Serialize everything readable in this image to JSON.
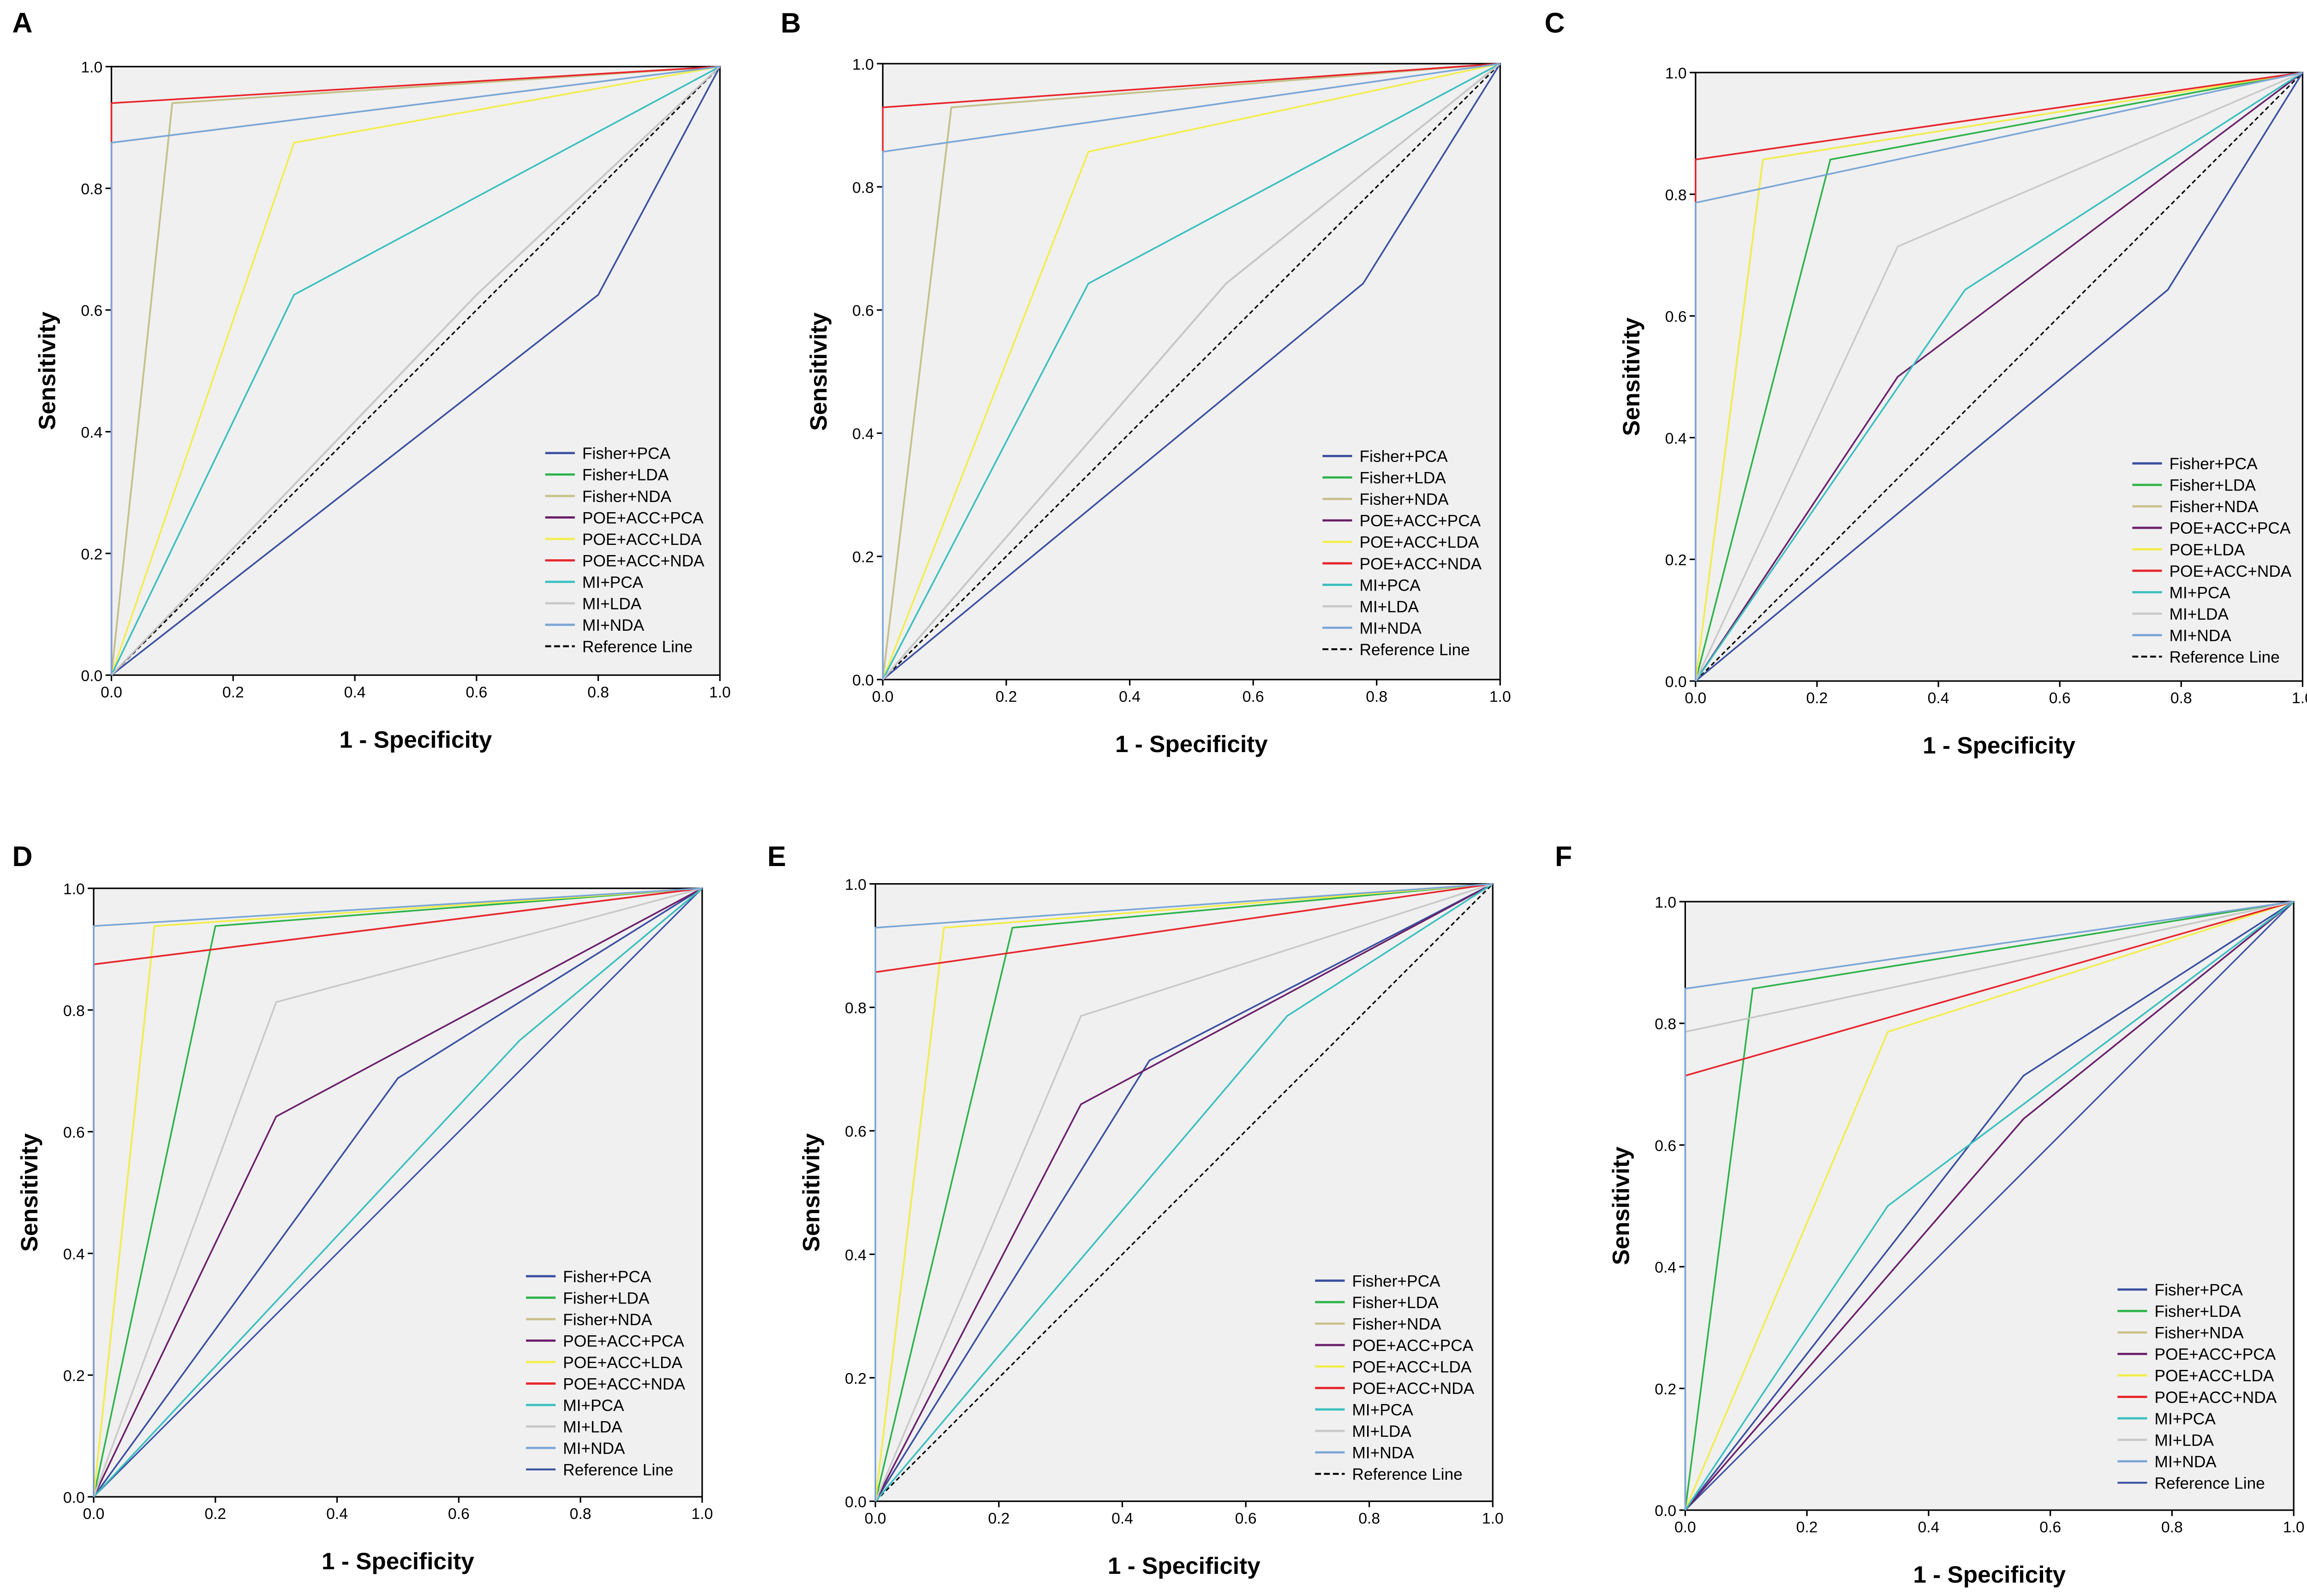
{
  "chart_data": [
    {
      "type": "line",
      "panel": "A",
      "xlabel": "1 - Specificity",
      "ylabel": "Sensitivity",
      "xlim": [
        0,
        1
      ],
      "ylim": [
        0,
        1
      ],
      "ticks": [
        "0.0",
        "0.2",
        "0.4",
        "0.6",
        "0.8",
        "1.0"
      ],
      "legend_position": "bottom-right",
      "reference": {
        "name": "Reference Line",
        "color": "#000000",
        "style": "dashed"
      },
      "series": [
        {
          "name": "Fisher+PCA",
          "color": "#3a4fa0",
          "point": [
            0.8,
            0.625
          ]
        },
        {
          "name": "Fisher+LDA",
          "color": "#2db34a",
          "point": [
            0.1,
            0.94
          ]
        },
        {
          "name": "Fisher+NDA",
          "color": "#c9c08a",
          "point": [
            0.1,
            0.94
          ]
        },
        {
          "name": "POE+ACC+PCA",
          "color": "#6b1f6b",
          "point": [
            0.6,
            0.625
          ]
        },
        {
          "name": "POE+ACC+LDA",
          "color": "#f2ee4a",
          "point": [
            0.3,
            0.875
          ]
        },
        {
          "name": "POE+ACC+NDA",
          "color": "#e8242b",
          "point": [
            0.0,
            0.94
          ]
        },
        {
          "name": "MI+PCA",
          "color": "#3bbfbf",
          "point": [
            0.3,
            0.625
          ]
        },
        {
          "name": "MI+LDA",
          "color": "#c8c8c8",
          "point": [
            0.6,
            0.625
          ]
        },
        {
          "name": "MI+NDA",
          "color": "#7aa6d6",
          "point": [
            0.0,
            0.875
          ]
        }
      ]
    },
    {
      "type": "line",
      "panel": "B",
      "xlabel": "1 - Specificity",
      "ylabel": "Sensitivity",
      "xlim": [
        0,
        1
      ],
      "ylim": [
        0,
        1
      ],
      "ticks": [
        "0.0",
        "0.2",
        "0.4",
        "0.6",
        "0.8",
        "1.0"
      ],
      "legend_position": "bottom-right",
      "reference": {
        "name": "Reference Line",
        "color": "#000000",
        "style": "dashed"
      },
      "series": [
        {
          "name": "Fisher+PCA",
          "color": "#3a4fa0",
          "point": [
            0.778,
            0.643
          ]
        },
        {
          "name": "Fisher+LDA",
          "color": "#2db34a",
          "point": [
            0.111,
            0.929
          ]
        },
        {
          "name": "Fisher+NDA",
          "color": "#c9c08a",
          "point": [
            0.111,
            0.929
          ]
        },
        {
          "name": "POE+ACC+PCA",
          "color": "#6b1f6b",
          "point": [
            0.556,
            0.643
          ]
        },
        {
          "name": "POE+ACC+LDA",
          "color": "#f2ee4a",
          "point": [
            0.333,
            0.857
          ]
        },
        {
          "name": "POE+ACC+NDA",
          "color": "#e8242b",
          "point": [
            0.0,
            0.929
          ]
        },
        {
          "name": "MI+PCA",
          "color": "#3bbfbf",
          "point": [
            0.333,
            0.643
          ]
        },
        {
          "name": "MI+LDA",
          "color": "#c8c8c8",
          "point": [
            0.556,
            0.643
          ]
        },
        {
          "name": "MI+NDA",
          "color": "#7aa6d6",
          "point": [
            0.0,
            0.857
          ]
        }
      ]
    },
    {
      "type": "line",
      "panel": "C",
      "xlabel": "1 - Specificity",
      "ylabel": "Sensitivity",
      "xlim": [
        0,
        1
      ],
      "ylim": [
        0,
        1
      ],
      "ticks": [
        "0.0",
        "0.2",
        "0.4",
        "0.6",
        "0.8",
        "1.0"
      ],
      "legend_position": "bottom-right",
      "reference": {
        "name": "Reference Line",
        "color": "#000000",
        "style": "dashed"
      },
      "series": [
        {
          "name": "Fisher+PCA",
          "color": "#3a4fa0",
          "point": [
            0.778,
            0.643
          ]
        },
        {
          "name": "Fisher+LDA",
          "color": "#2db34a",
          "point": [
            0.222,
            0.857
          ]
        },
        {
          "name": "Fisher+NDA",
          "color": "#c9c08a",
          "point": [
            0.111,
            0.857
          ]
        },
        {
          "name": "POE+ACC+PCA",
          "color": "#6b1f6b",
          "point": [
            0.333,
            0.5
          ]
        },
        {
          "name": "POE+LDA",
          "color": "#f2ee4a",
          "point": [
            0.111,
            0.857
          ]
        },
        {
          "name": "POE+ACC+NDA",
          "color": "#e8242b",
          "point": [
            0.0,
            0.857
          ]
        },
        {
          "name": "MI+PCA",
          "color": "#3bbfbf",
          "point": [
            0.444,
            0.643
          ]
        },
        {
          "name": "MI+LDA",
          "color": "#c8c8c8",
          "point": [
            0.333,
            0.714
          ]
        },
        {
          "name": "MI+NDA",
          "color": "#7aa6d6",
          "point": [
            0.0,
            0.786
          ]
        }
      ]
    },
    {
      "type": "line",
      "panel": "D",
      "xlabel": "1 - Specificity",
      "ylabel": "Sensitivity",
      "xlim": [
        0,
        1
      ],
      "ylim": [
        0,
        1
      ],
      "ticks": [
        "0.0",
        "0.2",
        "0.4",
        "0.6",
        "0.8",
        "1.0"
      ],
      "legend_position": "bottom-right",
      "reference": {
        "name": "Reference Line",
        "color": "#3a4fa0",
        "style": "solid"
      },
      "series": [
        {
          "name": "Fisher+PCA",
          "color": "#3a4fa0",
          "point": [
            0.5,
            0.688
          ]
        },
        {
          "name": "Fisher+LDA",
          "color": "#2db34a",
          "point": [
            0.2,
            0.938
          ]
        },
        {
          "name": "Fisher+NDA",
          "color": "#c9c08a",
          "point": [
            0.1,
            0.938
          ]
        },
        {
          "name": "POE+ACC+PCA",
          "color": "#6b1f6b",
          "point": [
            0.3,
            0.625
          ]
        },
        {
          "name": "POE+ACC+LDA",
          "color": "#f2ee4a",
          "point": [
            0.1,
            0.938
          ]
        },
        {
          "name": "POE+ACC+NDA",
          "color": "#e8242b",
          "point": [
            0.0,
            0.875
          ]
        },
        {
          "name": "MI+PCA",
          "color": "#3bbfbf",
          "point": [
            0.7,
            0.75
          ]
        },
        {
          "name": "MI+LDA",
          "color": "#c8c8c8",
          "point": [
            0.3,
            0.813
          ]
        },
        {
          "name": "MI+NDA",
          "color": "#7aa6d6",
          "point": [
            0.0,
            0.938
          ]
        }
      ]
    },
    {
      "type": "line",
      "panel": "E",
      "xlabel": "1 - Specificity",
      "ylabel": "Sensitivity",
      "xlim": [
        0,
        1
      ],
      "ylim": [
        0,
        1
      ],
      "ticks": [
        "0.0",
        "0.2",
        "0.4",
        "0.6",
        "0.8",
        "1.0"
      ],
      "legend_position": "bottom-right",
      "reference": {
        "name": "Reference Line",
        "color": "#000000",
        "style": "dashed"
      },
      "series": [
        {
          "name": "Fisher+PCA",
          "color": "#3a4fa0",
          "point": [
            0.444,
            0.714
          ]
        },
        {
          "name": "Fisher+LDA",
          "color": "#2db34a",
          "point": [
            0.222,
            0.929
          ]
        },
        {
          "name": "Fisher+NDA",
          "color": "#c9c08a",
          "point": [
            0.111,
            0.929
          ]
        },
        {
          "name": "POE+ACC+PCA",
          "color": "#6b1f6b",
          "point": [
            0.333,
            0.643
          ]
        },
        {
          "name": "POE+ACC+LDA",
          "color": "#f2ee4a",
          "point": [
            0.111,
            0.929
          ]
        },
        {
          "name": "POE+ACC+NDA",
          "color": "#e8242b",
          "point": [
            0.0,
            0.857
          ]
        },
        {
          "name": "MI+PCA",
          "color": "#3bbfbf",
          "point": [
            0.667,
            0.786
          ]
        },
        {
          "name": "MI+LDA",
          "color": "#c8c8c8",
          "point": [
            0.333,
            0.786
          ]
        },
        {
          "name": "MI+NDA",
          "color": "#7aa6d6",
          "point": [
            0.0,
            0.929
          ]
        }
      ]
    },
    {
      "type": "line",
      "panel": "F",
      "xlabel": "1 - Specificity",
      "ylabel": "Sensitivity",
      "xlim": [
        0,
        1
      ],
      "ylim": [
        0,
        1
      ],
      "ticks": [
        "0.0",
        "0.2",
        "0.4",
        "0.6",
        "0.8",
        "1.0"
      ],
      "legend_position": "bottom-right",
      "reference": {
        "name": "Reference Line",
        "color": "#3a4fa0",
        "style": "solid"
      },
      "series": [
        {
          "name": "Fisher+PCA",
          "color": "#3a4fa0",
          "point": [
            0.556,
            0.714
          ]
        },
        {
          "name": "Fisher+LDA",
          "color": "#2db34a",
          "point": [
            0.111,
            0.857
          ]
        },
        {
          "name": "Fisher+NDA",
          "color": "#c9c08a",
          "point": [
            0.0,
            0.786
          ]
        },
        {
          "name": "POE+ACC+PCA",
          "color": "#6b1f6b",
          "point": [
            0.556,
            0.643
          ]
        },
        {
          "name": "POE+ACC+LDA",
          "color": "#f2ee4a",
          "point": [
            0.333,
            0.786
          ]
        },
        {
          "name": "POE+ACC+NDA",
          "color": "#e8242b",
          "point": [
            0.0,
            0.714
          ]
        },
        {
          "name": " MI+PCA",
          "color": "#3bbfbf",
          "point": [
            0.333,
            0.5
          ]
        },
        {
          "name": "MI+LDA",
          "color": "#c8c8c8",
          "point": [
            0.0,
            0.786
          ]
        },
        {
          "name": "MI+NDA",
          "color": "#7aa6d6",
          "point": [
            0.0,
            0.857
          ]
        }
      ]
    }
  ]
}
